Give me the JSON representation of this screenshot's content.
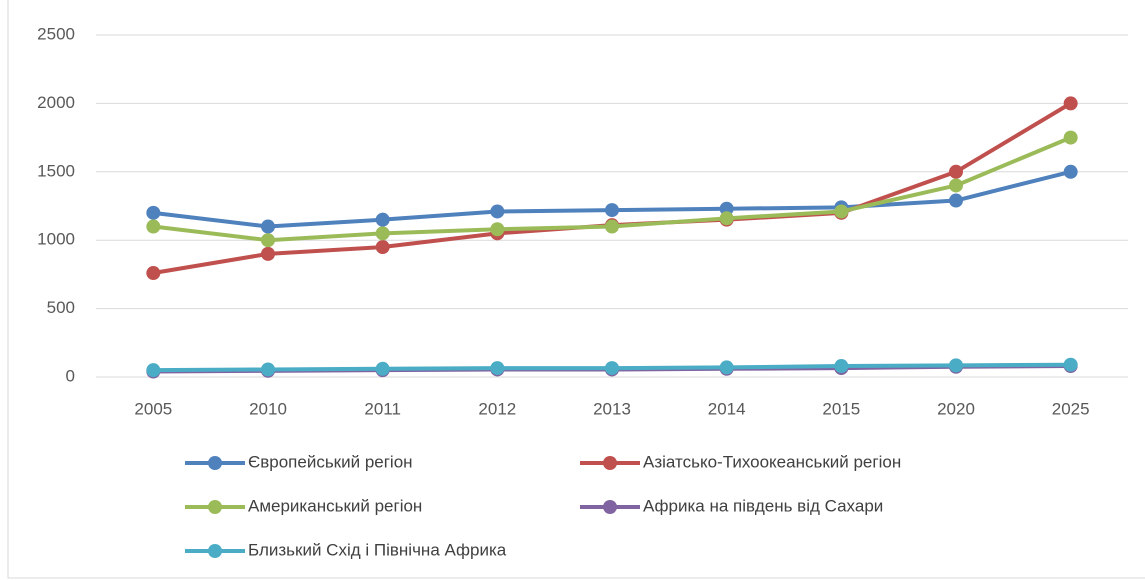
{
  "chart_data": {
    "type": "line",
    "categories": [
      "2005",
      "2010",
      "2011",
      "2012",
      "2013",
      "2014",
      "2015",
      "2020",
      "2025"
    ],
    "series": [
      {
        "name": "Європейський регіон",
        "color": "#4f81bd",
        "values": [
          1200,
          1100,
          1150,
          1210,
          1220,
          1230,
          1240,
          1290,
          1500
        ]
      },
      {
        "name": "Азіатсько-Тихоокеанський регіон",
        "color": "#c0504d",
        "values": [
          760,
          900,
          950,
          1050,
          1110,
          1150,
          1200,
          1500,
          2000
        ]
      },
      {
        "name": "Американський регіон",
        "color": "#9bbb59",
        "values": [
          1100,
          1000,
          1050,
          1080,
          1100,
          1160,
          1210,
          1400,
          1750
        ]
      },
      {
        "name": "Африка на південь від Сахари",
        "color": "#8064a2",
        "values": [
          40,
          45,
          50,
          55,
          55,
          60,
          65,
          75,
          80
        ]
      },
      {
        "name": "Близький Схід і Північна Африка",
        "color": "#4bacc6",
        "values": [
          50,
          55,
          60,
          65,
          65,
          70,
          80,
          85,
          90
        ]
      }
    ],
    "ylim": [
      0,
      2500
    ],
    "yticks": [
      0,
      500,
      1000,
      1500,
      2000,
      2500
    ],
    "grid": true
  }
}
